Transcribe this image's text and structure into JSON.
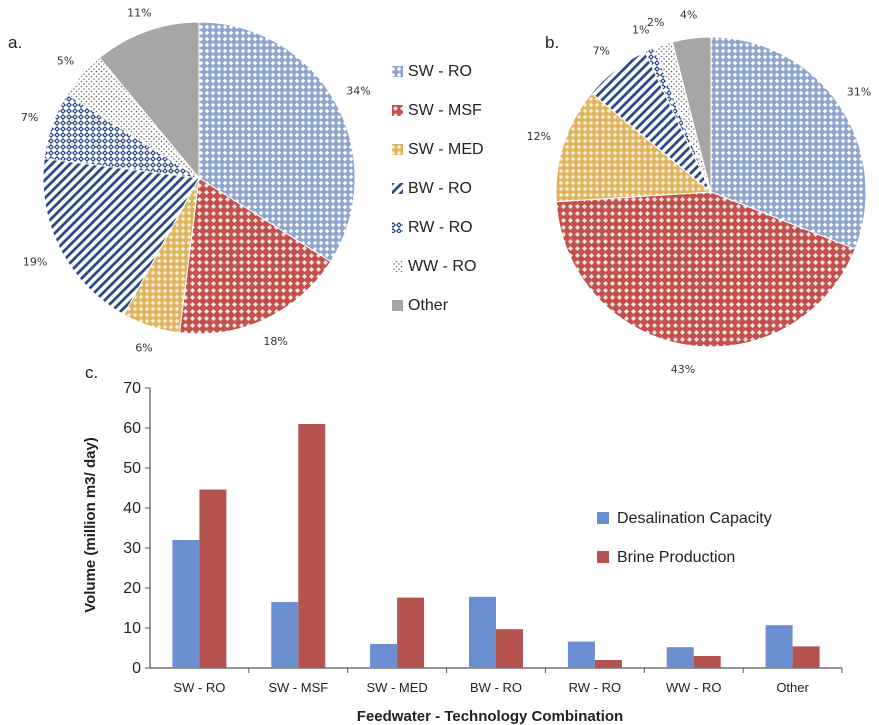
{
  "colors": {
    "sw_ro": "#8ea6cf",
    "sw_msf": "#c2504d",
    "sw_med": "#e0b45c",
    "bw_ro": "#2a4a8a",
    "rw_ro": "#2a4a8a",
    "ww_ro": "#666666",
    "other": "#a6a6a6",
    "capacity": "#6b8fd1",
    "brine": "#b5534f"
  },
  "panels": {
    "a_label": "a.",
    "b_label": "b.",
    "c_label": "c."
  },
  "legend": [
    {
      "label": "SW - RO",
      "key": "sw_ro"
    },
    {
      "label": "SW - MSF",
      "key": "sw_msf"
    },
    {
      "label": "SW - MED",
      "key": "sw_med"
    },
    {
      "label": "BW - RO",
      "key": "bw_ro"
    },
    {
      "label": "RW - RO",
      "key": "rw_ro"
    },
    {
      "label": "WW - RO",
      "key": "ww_ro"
    },
    {
      "label": "Other",
      "key": "other"
    }
  ],
  "chart_data": [
    {
      "type": "pie",
      "panel": "a",
      "title": "",
      "start": "top",
      "direction": "clockwise",
      "slices": [
        {
          "label": "SW - RO",
          "key": "sw_ro",
          "value": 34,
          "text": "34%"
        },
        {
          "label": "SW - MSF",
          "key": "sw_msf",
          "value": 18,
          "text": "18%"
        },
        {
          "label": "SW - MED",
          "key": "sw_med",
          "value": 6,
          "text": "6%"
        },
        {
          "label": "BW - RO",
          "key": "bw_ro",
          "value": 19,
          "text": "19%"
        },
        {
          "label": "RW - RO",
          "key": "rw_ro",
          "value": 7,
          "text": "7%"
        },
        {
          "label": "WW - RO",
          "key": "ww_ro",
          "value": 5,
          "text": "5%"
        },
        {
          "label": "Other",
          "key": "other",
          "value": 11,
          "text": "11%"
        }
      ]
    },
    {
      "type": "pie",
      "panel": "b",
      "title": "",
      "start": "top",
      "direction": "clockwise",
      "slices": [
        {
          "label": "SW - RO",
          "key": "sw_ro",
          "value": 31,
          "text": "31%"
        },
        {
          "label": "SW - MSF",
          "key": "sw_msf",
          "value": 43,
          "text": "43%"
        },
        {
          "label": "SW - MED",
          "key": "sw_med",
          "value": 12,
          "text": "12%"
        },
        {
          "label": "BW - RO",
          "key": "bw_ro",
          "value": 7,
          "text": "7%"
        },
        {
          "label": "RW - RO",
          "key": "rw_ro",
          "value": 1,
          "text": "1%"
        },
        {
          "label": "WW - RO",
          "key": "ww_ro",
          "value": 2,
          "text": "2%"
        },
        {
          "label": "Other",
          "key": "other",
          "value": 4,
          "text": "4%"
        }
      ]
    },
    {
      "type": "bar",
      "panel": "c",
      "title": "",
      "xlabel": "Feedwater - Technology Combination",
      "ylabel": "Volume (million m3/ day)",
      "ylim": [
        0,
        70
      ],
      "yticks": [
        0,
        10,
        20,
        30,
        40,
        50,
        60,
        70
      ],
      "grid": false,
      "legend_position": "right",
      "categories": [
        "SW - RO",
        "SW - MSF",
        "SW - MED",
        "BW - RO",
        "RW - RO",
        "WW - RO",
        "Other"
      ],
      "series": [
        {
          "name": "Desalination Capacity",
          "key": "capacity",
          "values": [
            32,
            16.5,
            6,
            17.8,
            6.6,
            5.2,
            10.7
          ]
        },
        {
          "name": "Brine Production",
          "key": "brine",
          "values": [
            44.6,
            61,
            17.6,
            9.7,
            2,
            3,
            5.4
          ]
        }
      ]
    }
  ]
}
